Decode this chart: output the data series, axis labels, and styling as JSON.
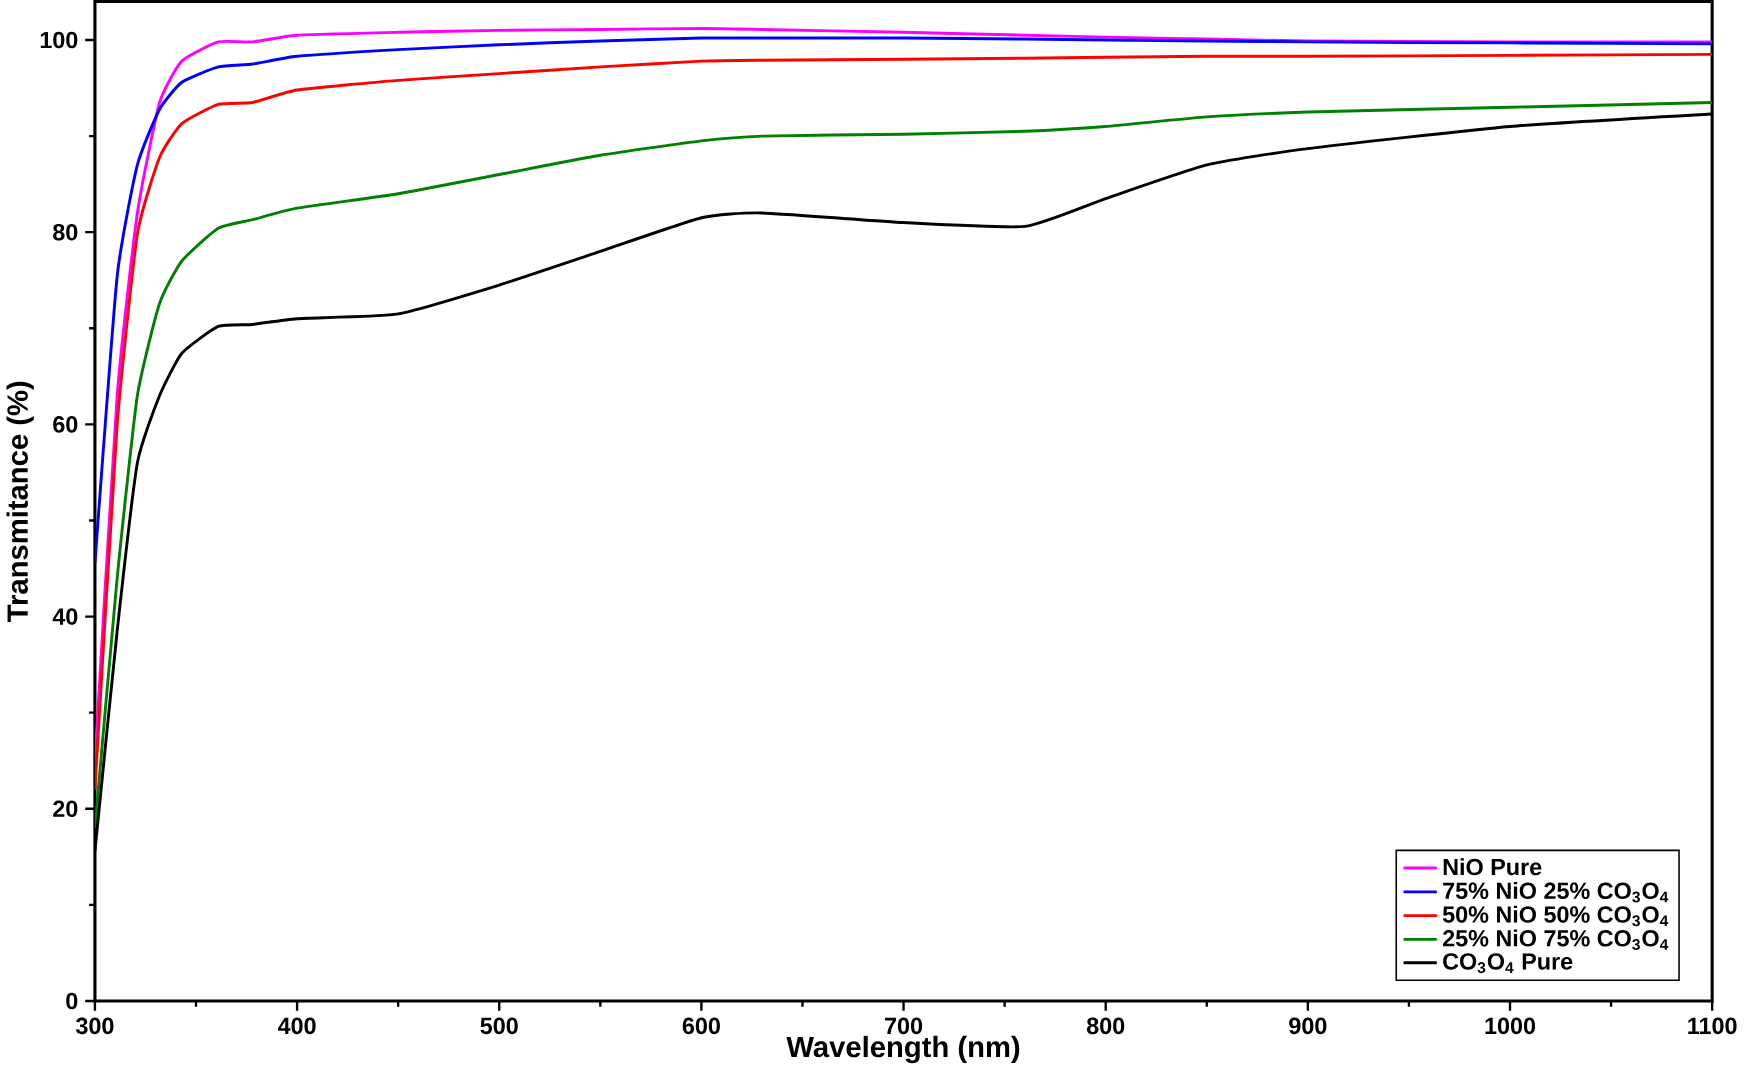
{
  "chart_data": {
    "type": "line",
    "xlabel": "Wavelength (nm)",
    "ylabel": "Transmitance (%)",
    "xlim": [
      300,
      1100
    ],
    "ylim": [
      0,
      104
    ],
    "xticks": [
      300,
      400,
      500,
      600,
      700,
      800,
      900,
      1000,
      1100
    ],
    "yticks": [
      0,
      20,
      40,
      60,
      80,
      100
    ],
    "grid": false,
    "legend": "bottom right",
    "line_style": "solid",
    "marker": "none",
    "x": [
      300,
      311,
      321,
      332,
      343,
      361,
      378,
      400,
      450,
      500,
      550,
      600,
      630,
      700,
      760,
      800,
      850,
      900,
      1000,
      1100
    ],
    "series": [
      {
        "name": "NiO Pure",
        "color": "#ff00ff",
        "values": [
          25,
          63,
          82,
          93.5,
          97.8,
          99.8,
          99.8,
          100.5,
          100.8,
          101,
          101.1,
          101.2,
          101.1,
          100.8,
          100.5,
          100.3,
          100.1,
          99.9,
          99.8,
          99.8
        ]
      },
      {
        "name": "75% NiO 25% CO$_{3}$O$_{4}$",
        "color": "#0000ff",
        "values": [
          45.6,
          75.4,
          87,
          92.8,
          95.6,
          97.2,
          97.5,
          98.3,
          99,
          99.5,
          99.9,
          100.2,
          100.2,
          100.2,
          100.1,
          100,
          99.9,
          99.8,
          99.7,
          99.6
        ]
      },
      {
        "name": "50% NiO 50% CO$_{3}$O$_{4}$",
        "color": "#ff0000",
        "values": [
          22,
          60,
          79.8,
          87.8,
          91.3,
          93.3,
          93.5,
          94.8,
          95.8,
          96.5,
          97.2,
          97.8,
          97.9,
          98,
          98.1,
          98.2,
          98.3,
          98.3,
          98.4,
          98.5
        ]
      },
      {
        "name": "25% NiO 75% CO$_{3}$O$_{4}$",
        "color": "#008000",
        "values": [
          18,
          44,
          63,
          72.6,
          77,
          80.4,
          81.3,
          82.5,
          84,
          86,
          88,
          89.5,
          90,
          90.2,
          90.5,
          91,
          92,
          92.5,
          93,
          93.5
        ]
      },
      {
        "name": "CO$_{3}$O$_{4}$ Pure",
        "color": "#000000",
        "values": [
          15.6,
          38.5,
          56,
          63,
          67.4,
          70.2,
          70.4,
          71,
          71.5,
          74.5,
          78,
          81.5,
          82,
          81,
          80.6,
          83.5,
          87,
          88.7,
          91,
          92.3
        ]
      }
    ]
  }
}
